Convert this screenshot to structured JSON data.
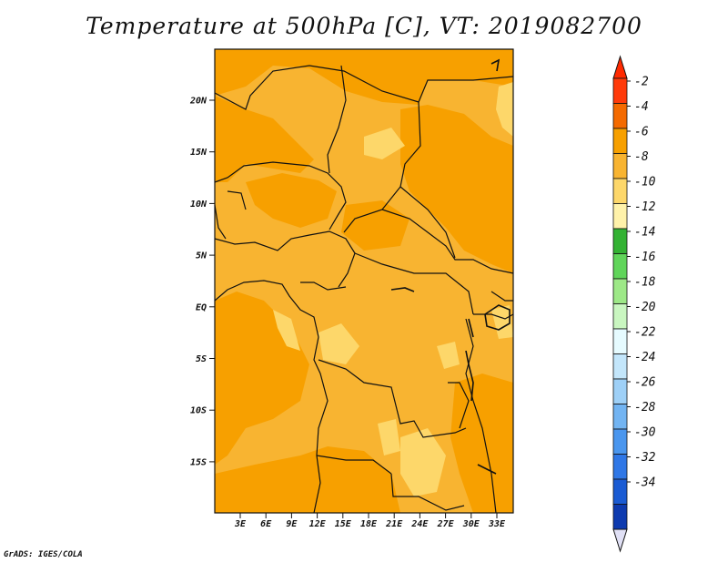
{
  "title": "Temperature at 500hPa [C], VT: 2019082700",
  "credit": "GrADS: IGES/COLA",
  "map": {
    "lat_labels": [
      "20N",
      "15N",
      "10N",
      "5N",
      "EQ",
      "5S",
      "10S",
      "15S"
    ],
    "lon_labels": [
      "3E",
      "6E",
      "9E",
      "12E",
      "15E",
      "18E",
      "21E",
      "24E",
      "27E",
      "30E",
      "33E"
    ]
  },
  "colorbar": {
    "labels": [
      "-2",
      "-4",
      "-6",
      "-8",
      "-10",
      "-12",
      "-14",
      "-16",
      "-18",
      "-20",
      "-22",
      "-24",
      "-26",
      "-28",
      "-30",
      "-32",
      "-34"
    ],
    "colors": [
      "#ff3a0a",
      "#f46a00",
      "#f7a000",
      "#f8b431",
      "#fdd76a",
      "#fff2aa",
      "#33b233",
      "#60d55a",
      "#9de887",
      "#c9f6c0",
      "#e6fbff",
      "#c3e6fb",
      "#9ed0f7",
      "#72b4f2",
      "#4a96ee",
      "#2f77e6",
      "#1a5bd3",
      "#0d3aaf"
    ],
    "under_color": "#0a1460",
    "over_color": "#ff2a00",
    "min_arrow_color": "#e0e0f5"
  }
}
